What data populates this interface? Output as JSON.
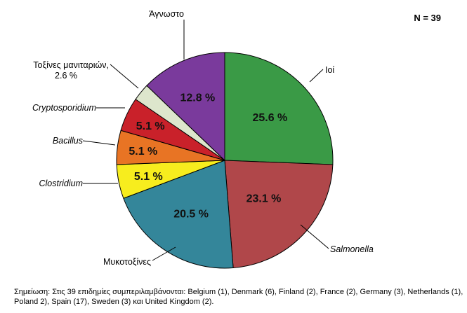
{
  "chart_data": {
    "type": "pie",
    "n_label": "N = 39",
    "slices": [
      {
        "label": "Ιοί",
        "value": 25.6,
        "display": "25.6 %",
        "color": "#3a9a46",
        "italic": false
      },
      {
        "label": "Salmonella",
        "value": 23.1,
        "display": "23.1 %",
        "color": "#b0474a",
        "italic": true
      },
      {
        "label": "Μυκοτοξίνες",
        "value": 20.5,
        "display": "20.5 %",
        "color": "#34869a",
        "italic": false
      },
      {
        "label": "Clostridium",
        "value": 5.1,
        "display": "5.1 %",
        "color": "#f7ed1e",
        "italic": true
      },
      {
        "label": "Bacillus",
        "value": 5.1,
        "display": "5.1 %",
        "color": "#e87424",
        "italic": true
      },
      {
        "label": "Cryptosporidium",
        "value": 5.1,
        "display": "5.1 %",
        "color": "#c9212a",
        "italic": true
      },
      {
        "label": "Τοξίνες μανιταριών,",
        "label_line2": "2.6 %",
        "value": 2.6,
        "display": "",
        "color": "#dde6cc",
        "italic": false
      },
      {
        "label": "Άγνωστο",
        "value": 12.8,
        "display": "12.8 %",
        "color": "#7a3a9c",
        "italic": false
      }
    ]
  },
  "note": "Σημείωση: Στις 39 επιδημίες συμπεριλαμβάνονται: Belgium (1), Denmark (6), Finland (2), France (2), Germany (3), Netherlands (1), Poland 2), Spain (17), Sweden (3) και United Kingdom (2)."
}
